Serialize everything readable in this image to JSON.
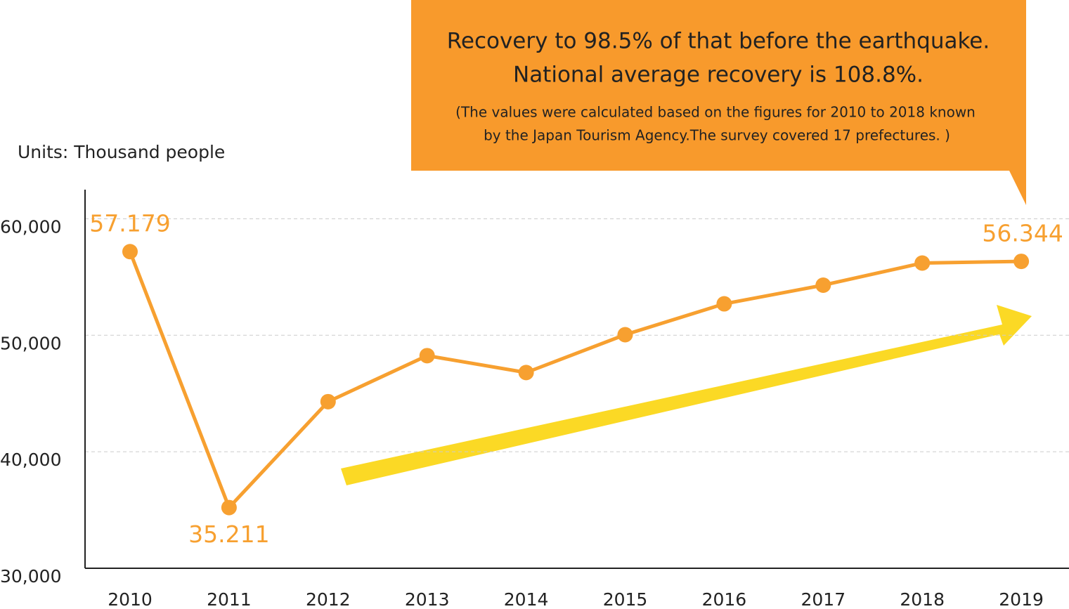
{
  "chart_data": {
    "type": "line",
    "y_label": "Units: Thousand people",
    "annotation": {
      "headline": [
        "Recovery to 98.5% of that before the earthquake.",
        "National average recovery is 108.8%."
      ],
      "note": [
        "(The values were calculated based on the figures for 2010 to 2018 known",
        "by the Japan Tourism Agency.The survey covered 17 prefectures. )"
      ]
    },
    "categories": [
      "2010",
      "2011",
      "2012",
      "2013",
      "2014",
      "2015",
      "2016",
      "2017",
      "2018",
      "2019"
    ],
    "values": [
      57179,
      35211,
      44300,
      48250,
      46800,
      50050,
      52700,
      54300,
      56200,
      56344
    ],
    "value_labels": [
      "57.179",
      "35.211",
      null,
      null,
      null,
      null,
      null,
      null,
      null,
      "56.344"
    ],
    "color": "#f7a030",
    "ylim": [
      30000,
      62500
    ],
    "yticks": [
      {
        "value": 30000,
        "label": "30,000"
      },
      {
        "value": 40000,
        "label": "40,000"
      },
      {
        "value": 50000,
        "label": "50,000"
      },
      {
        "value": 60000,
        "label": "60,000"
      }
    ],
    "grid": true
  }
}
